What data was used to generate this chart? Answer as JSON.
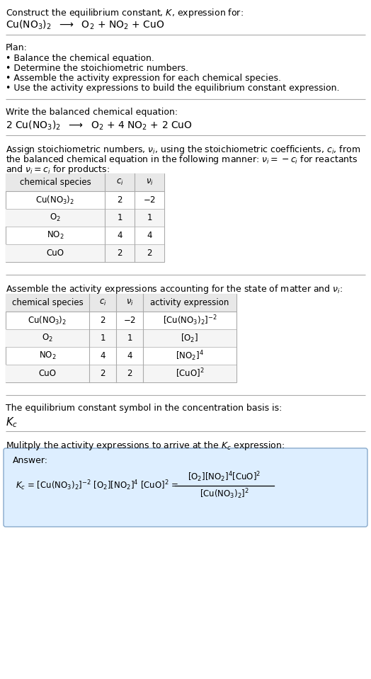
{
  "title_line1": "Construct the equilibrium constant, $K$, expression for:",
  "title_line2": "Cu(NO$_3$)$_2$  $\\longrightarrow$  O$_2$ + NO$_2$ + CuO",
  "plan_header": "Plan:",
  "plan_items": [
    "• Balance the chemical equation.",
    "• Determine the stoichiometric numbers.",
    "• Assemble the activity expression for each chemical species.",
    "• Use the activity expressions to build the equilibrium constant expression."
  ],
  "balanced_header": "Write the balanced chemical equation:",
  "balanced_eq": "2 Cu(NO$_3$)$_2$  $\\longrightarrow$  O$_2$ + 4 NO$_2$ + 2 CuO",
  "stoich_text1": "Assign stoichiometric numbers, $\\nu_i$, using the stoichiometric coefficients, $c_i$, from",
  "stoich_text2": "the balanced chemical equation in the following manner: $\\nu_i = -c_i$ for reactants",
  "stoich_text3": "and $\\nu_i = c_i$ for products:",
  "table1_headers": [
    "chemical species",
    "$c_i$",
    "$\\nu_i$"
  ],
  "table1_rows": [
    [
      "Cu(NO$_3$)$_2$",
      "2",
      "$-2$"
    ],
    [
      "O$_2$",
      "1",
      "1"
    ],
    [
      "NO$_2$",
      "4",
      "4"
    ],
    [
      "CuO",
      "2",
      "2"
    ]
  ],
  "activity_header": "Assemble the activity expressions accounting for the state of matter and $\\nu_i$:",
  "table2_headers": [
    "chemical species",
    "$c_i$",
    "$\\nu_i$",
    "activity expression"
  ],
  "table2_rows": [
    [
      "Cu(NO$_3$)$_2$",
      "2",
      "$-2$",
      "[Cu(NO$_3$)$_2$]$^{-2}$"
    ],
    [
      "O$_2$",
      "1",
      "1",
      "[O$_2$]"
    ],
    [
      "NO$_2$",
      "4",
      "4",
      "[NO$_2$]$^4$"
    ],
    [
      "CuO",
      "2",
      "2",
      "[CuO]$^2$"
    ]
  ],
  "kc_header": "The equilibrium constant symbol in the concentration basis is:",
  "kc_symbol": "$K_c$",
  "multiply_header": "Mulitply the activity expressions to arrive at the $K_c$ expression:",
  "answer_label": "Answer:",
  "bg_color": "#ffffff",
  "answer_bg": "#ddeeff",
  "answer_border": "#88aacc",
  "line_color": "#aaaaaa",
  "text_color": "#000000",
  "font_size": 9.0,
  "fig_width": 5.24,
  "fig_height": 9.59,
  "dpi": 100
}
